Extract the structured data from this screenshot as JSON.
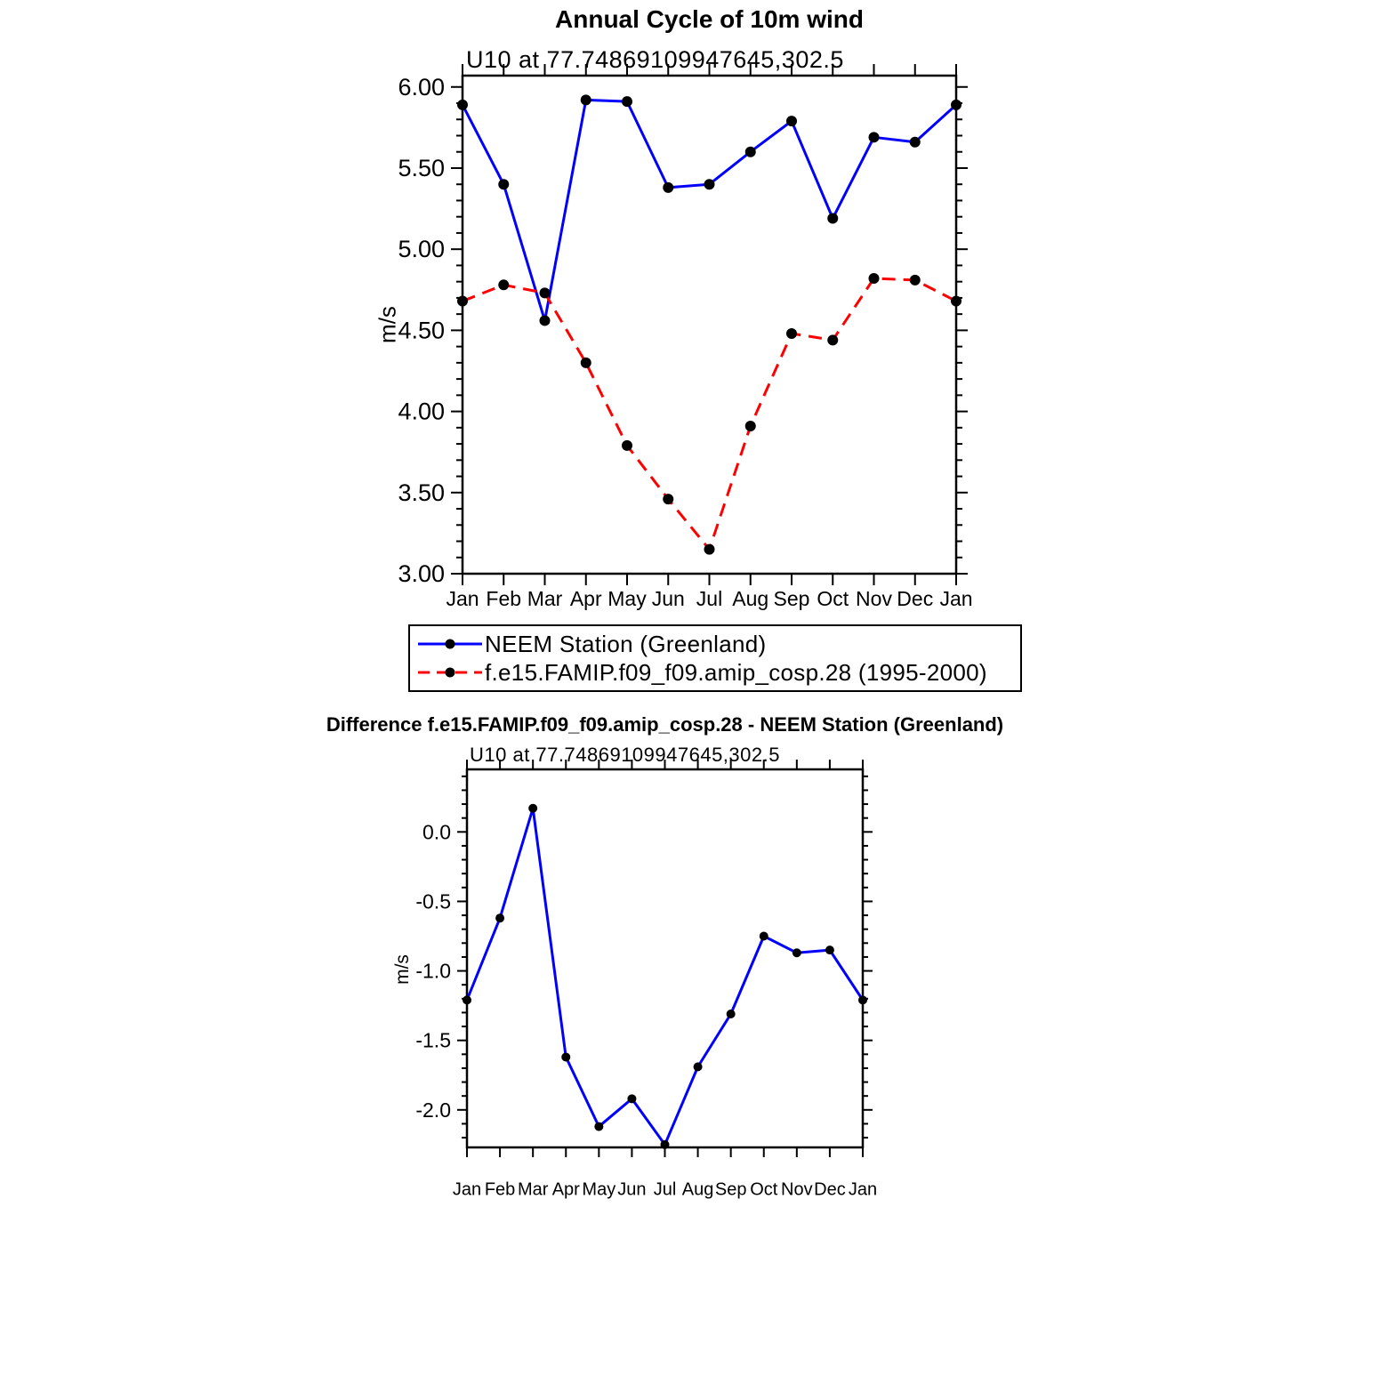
{
  "page": {
    "background": "#ffffff"
  },
  "chart_data": [
    {
      "type": "line",
      "title": "Annual Cycle of 10m wind",
      "subtitle": "U10 at 77.74869109947645,302.5",
      "ylabel": "m/s",
      "xlabel": "",
      "categories": [
        "Jan",
        "Feb",
        "Mar",
        "Apr",
        "May",
        "Jun",
        "Jul",
        "Aug",
        "Sep",
        "Oct",
        "Nov",
        "Dec",
        "Jan"
      ],
      "ylim": [
        3.0,
        6.07
      ],
      "yticks": [
        6.0,
        5.5,
        5.0,
        4.5,
        4.0,
        3.5,
        3.0
      ],
      "ytick_labels": [
        "6.00",
        "5.50",
        "5.00",
        "4.50",
        "4.00",
        "3.50",
        "3.00"
      ],
      "yminor_step": 0.1,
      "grid": false,
      "legend_position": "below",
      "series": [
        {
          "name": "NEEM Station (Greenland)",
          "color": "#0000ff",
          "line_style": "solid",
          "marker": "filled-circle",
          "marker_color": "#000000",
          "values": [
            5.89,
            5.4,
            4.56,
            5.92,
            5.91,
            5.38,
            5.4,
            5.6,
            5.79,
            5.19,
            5.69,
            5.66,
            5.89
          ]
        },
        {
          "name": "f.e15.FAMIP.f09_f09.amip_cosp.28 (1995-2000)",
          "color": "#ff0000",
          "line_style": "dashed",
          "marker": "filled-circle",
          "marker_color": "#000000",
          "values": [
            4.68,
            4.78,
            4.73,
            4.3,
            3.79,
            3.46,
            3.15,
            3.91,
            4.48,
            4.44,
            4.82,
            4.81,
            4.68
          ]
        }
      ]
    },
    {
      "type": "line",
      "title": "Difference f.e15.FAMIP.f09_f09.amip_cosp.28 - NEEM Station (Greenland)",
      "subtitle": "U10 at 77.74869109947645,302.5",
      "ylabel": "m/s",
      "xlabel": "",
      "categories": [
        "Jan",
        "Feb",
        "Mar",
        "Apr",
        "May",
        "Jun",
        "Jul",
        "Aug",
        "Sep",
        "Oct",
        "Nov",
        "Dec",
        "Jan"
      ],
      "ylim": [
        -2.27,
        0.45
      ],
      "yticks": [
        0.0,
        -0.5,
        -1.0,
        -1.5,
        -2.0
      ],
      "ytick_labels": [
        "0.0",
        "-0.5",
        "-1.0",
        "-1.5",
        "-2.0"
      ],
      "yminor_step": 0.1,
      "grid": false,
      "series": [
        {
          "name": "f.e15.FAMIP.f09_f09.amip_cosp.28 - NEEM Station (Greenland)",
          "color": "#0000ff",
          "line_style": "solid",
          "marker": "filled-circle",
          "marker_color": "#000000",
          "values": [
            -1.21,
            -0.62,
            0.17,
            -1.62,
            -2.12,
            -1.92,
            -2.25,
            -1.69,
            -1.31,
            -0.75,
            -0.87,
            -0.85,
            -1.21
          ]
        }
      ]
    }
  ]
}
